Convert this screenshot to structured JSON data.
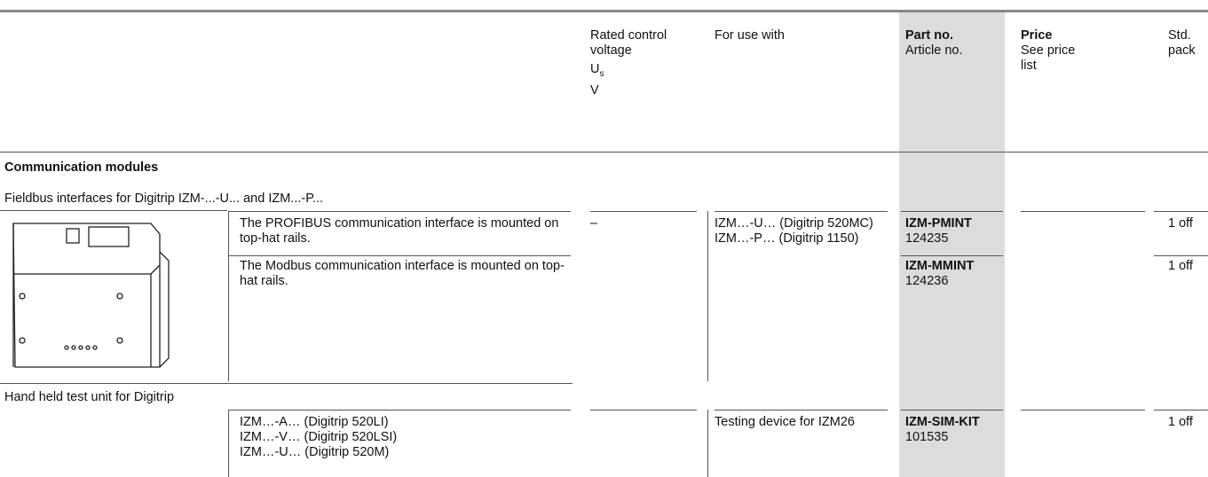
{
  "header": {
    "voltage": "Rated control voltage",
    "symbol": "U",
    "symbol_sub": "s",
    "unit": "V",
    "for_use_with": "For use with",
    "part_no": "Part no.",
    "article_no": "Article no.",
    "price": "Price",
    "price_note": "See price list",
    "std_pack": "Std. pack"
  },
  "section_title": "Communication modules",
  "groups": [
    {
      "title": "Fieldbus interfaces for Digitrip IZM-...-U... and IZM...-P...",
      "voltage": "–",
      "for_use_with": [
        "IZM…-U… (Digitrip 520MC)",
        "IZM…-P… (Digitrip 1150)"
      ],
      "rows": [
        {
          "description": "The PROFIBUS communication interface is mounted on top-hat rails.",
          "part_no": "IZM-PMINT",
          "article_no": "124235",
          "std_pack": "1 off"
        },
        {
          "description": "The Modbus communication interface is mounted on top-hat rails.",
          "part_no": "IZM-MMINT",
          "article_no": "124236",
          "std_pack": "1 off"
        }
      ]
    },
    {
      "title": "Hand held test unit for Digitrip",
      "for_use_with": [
        "Testing device for IZM26"
      ],
      "rows": [
        {
          "description_lines": [
            "IZM…-A… (Digitrip 520LI)",
            "IZM…-V… (Digitrip 520LSI)",
            "IZM…-U… (Digitrip 520M)"
          ],
          "part_no": "IZM-SIM-KIT",
          "article_no": "101535",
          "std_pack": "1 off"
        }
      ]
    }
  ]
}
